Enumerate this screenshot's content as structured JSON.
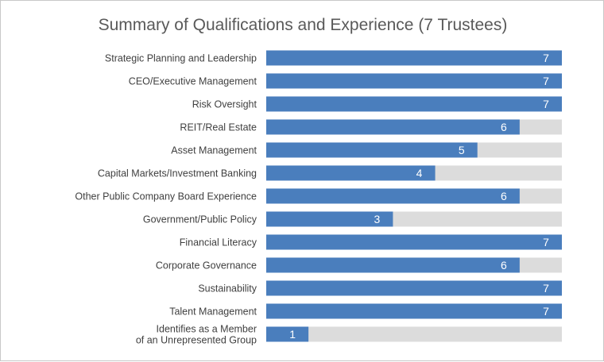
{
  "chart_data": {
    "type": "bar",
    "orientation": "horizontal",
    "title": "Summary of Qualifications and Experience (7 Trustees)",
    "max_value": 7,
    "xlim": [
      0,
      7
    ],
    "categories": [
      "Strategic Planning and Leadership",
      "CEO/Executive Management",
      "Risk Oversight",
      "REIT/Real Estate",
      "Asset Management",
      "Capital Markets/Investment Banking",
      "Other Public Company Board Experience",
      "Government/Public Policy",
      "Financial Literacy",
      "Corporate Governance",
      "Sustainability",
      "Talent Management",
      "Identifies as a Member\nof an Unrepresented Group"
    ],
    "values": [
      7,
      7,
      7,
      6,
      5,
      4,
      6,
      3,
      7,
      6,
      7,
      7,
      1
    ],
    "bar_color": "#4a7ebd",
    "track_color": "#dcdcdc",
    "label_color": "#404040",
    "title_color": "#595959",
    "value_label_color": "#ffffff",
    "grid": false,
    "legend": "none"
  }
}
